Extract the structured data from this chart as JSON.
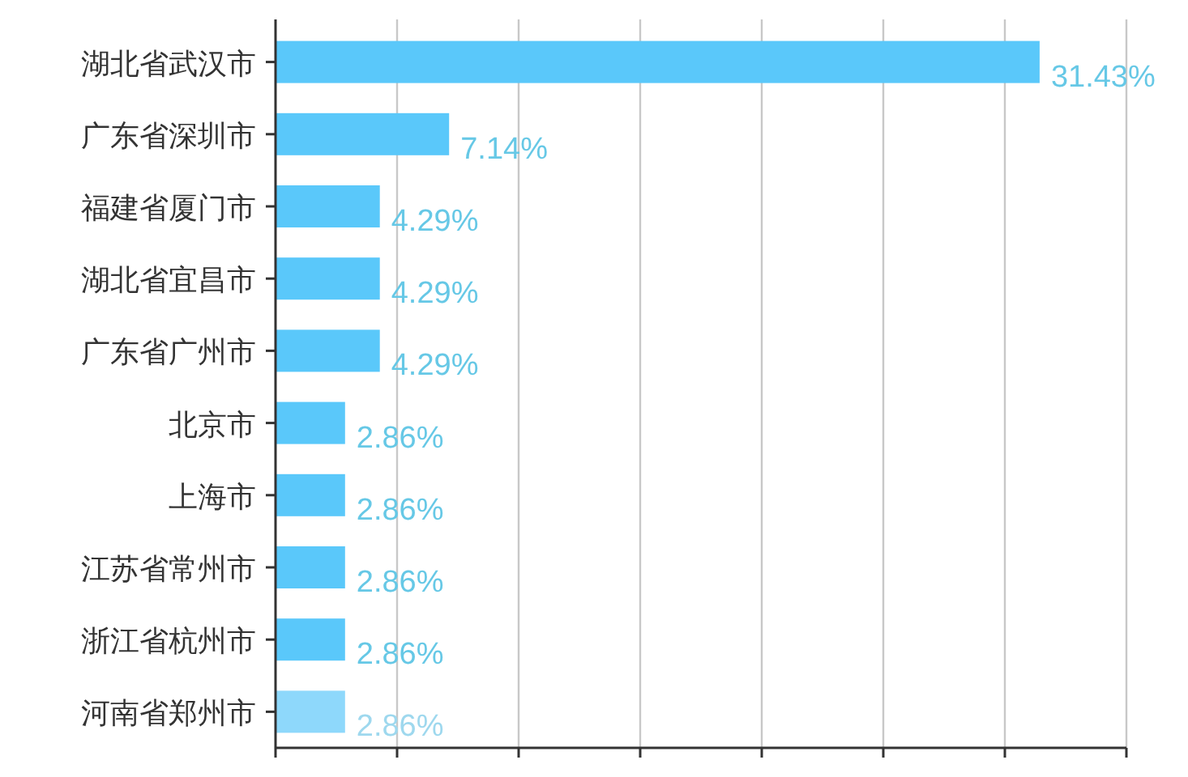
{
  "chart_data": {
    "type": "bar",
    "orientation": "horizontal",
    "categories": [
      "湖北省武汉市",
      "广东省深圳市",
      "福建省厦门市",
      "湖北省宜昌市",
      "广东省广州市",
      "北京市",
      "上海市",
      "江苏省常州市",
      "浙江省杭州市",
      "河南省郑州市"
    ],
    "values": [
      31.43,
      7.14,
      4.29,
      4.29,
      4.29,
      2.86,
      2.86,
      2.86,
      2.86,
      2.86
    ],
    "colors": [
      "#5ac8fa",
      "#5ac8fa",
      "#5ac8fa",
      "#5ac8fa",
      "#5ac8fa",
      "#5ac8fa",
      "#5ac8fa",
      "#5ac8fa",
      "#5ac8fa",
      "#8ed8fb"
    ],
    "value_labels": [
      "31.43%",
      "7.14%",
      "4.29%",
      "4.29%",
      "4.29%",
      "2.86%",
      "2.86%",
      "2.86%",
      "2.86%",
      "2.86%"
    ],
    "xlim": [
      0,
      35
    ],
    "xticks": [
      {
        "value": 0,
        "label": null
      },
      {
        "value": 5,
        "label": null
      },
      {
        "value": 10,
        "label": null
      },
      {
        "value": 15,
        "label": null
      },
      {
        "value": 20,
        "label": null
      },
      {
        "value": 25,
        "label": null
      },
      {
        "value": 30,
        "label": null
      },
      {
        "value": 35,
        "label": null
      }
    ],
    "grid": "x",
    "tick_labels": "y"
  }
}
